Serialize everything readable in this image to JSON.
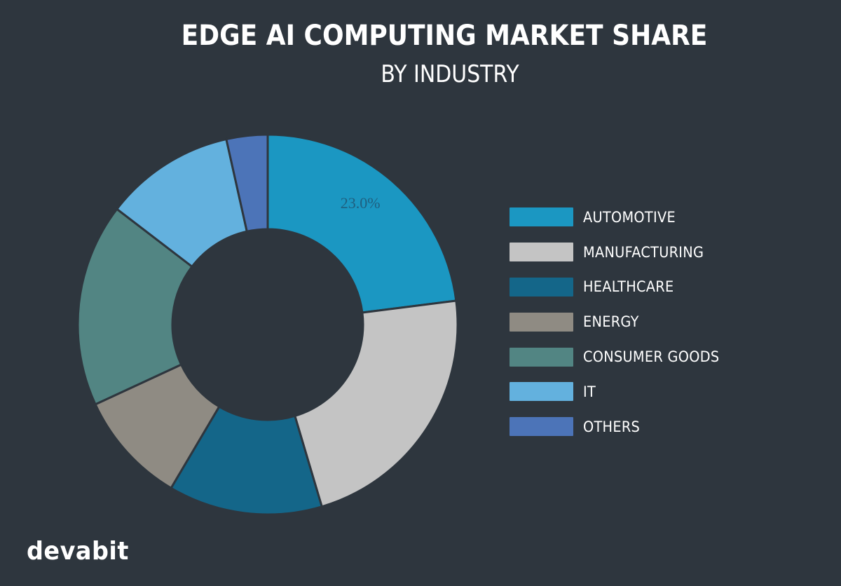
{
  "header": {
    "title": "EDGE AI COMPUTING MARKET SHARE",
    "subtitle": "BY INDUSTRY"
  },
  "brand": {
    "logo_text": "devabit"
  },
  "colors": {
    "background": "#2e363e",
    "separator": "#2e363e",
    "slice_label": "#1f5f7f"
  },
  "chart_data": {
    "type": "pie",
    "variant": "donut",
    "title": "EDGE AI COMPUTING MARKET SHARE",
    "subtitle": "BY INDUSTRY",
    "legend_position": "right",
    "categories": [
      "AUTOMOTIVE",
      "MANUFACTURING",
      "HEALTHCARE",
      "ENERGY",
      "CONSUMER GOODS",
      "IT",
      "OTHERS"
    ],
    "values": [
      23.0,
      22.4,
      13.1,
      9.6,
      17.3,
      11.1,
      3.5
    ],
    "colors": [
      "#1b97c2",
      "#c4c4c4",
      "#146689",
      "#8f8b83",
      "#528583",
      "#63b1de",
      "#4c74b8"
    ],
    "unit": "%",
    "data_labels": [
      {
        "category": "AUTOMOTIVE",
        "text": "23.0%"
      }
    ]
  },
  "legend": {
    "items": [
      {
        "label": "AUTOMOTIVE",
        "color": "#1b97c2"
      },
      {
        "label": "MANUFACTURING",
        "color": "#c4c4c4"
      },
      {
        "label": "HEALTHCARE",
        "color": "#146689"
      },
      {
        "label": "ENERGY",
        "color": "#8f8b83"
      },
      {
        "label": "CONSUMER GOODS",
        "color": "#528583"
      },
      {
        "label": "IT",
        "color": "#63b1de"
      },
      {
        "label": "OTHERS",
        "color": "#4c74b8"
      }
    ]
  }
}
